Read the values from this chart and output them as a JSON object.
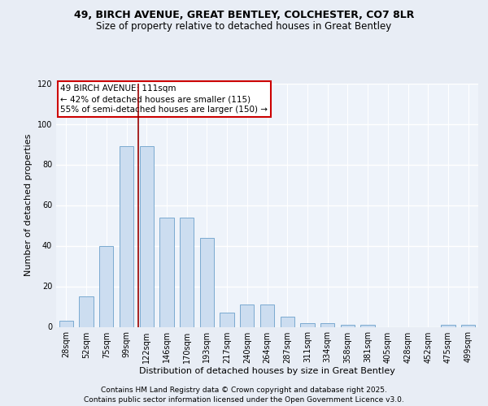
{
  "title1": "49, BIRCH AVENUE, GREAT BENTLEY, COLCHESTER, CO7 8LR",
  "title2": "Size of property relative to detached houses in Great Bentley",
  "xlabel": "Distribution of detached houses by size in Great Bentley",
  "ylabel": "Number of detached properties",
  "categories": [
    "28sqm",
    "52sqm",
    "75sqm",
    "99sqm",
    "122sqm",
    "146sqm",
    "170sqm",
    "193sqm",
    "217sqm",
    "240sqm",
    "264sqm",
    "287sqm",
    "311sqm",
    "334sqm",
    "358sqm",
    "381sqm",
    "405sqm",
    "428sqm",
    "452sqm",
    "475sqm",
    "499sqm"
  ],
  "values": [
    3,
    15,
    40,
    89,
    89,
    54,
    54,
    44,
    7,
    11,
    11,
    5,
    2,
    2,
    1,
    1,
    0,
    0,
    0,
    1,
    1
  ],
  "bar_color": "#ccddf0",
  "bar_edge_color": "#7aaad0",
  "bar_width": 0.7,
  "vline_x": 3.6,
  "vline_color": "#990000",
  "annotation_line1": "49 BIRCH AVENUE: 111sqm",
  "annotation_line2": "← 42% of detached houses are smaller (115)",
  "annotation_line3": "55% of semi-detached houses are larger (150) →",
  "annotation_box_color": "#cc0000",
  "ylim": [
    0,
    120
  ],
  "yticks": [
    0,
    20,
    40,
    60,
    80,
    100,
    120
  ],
  "bg_color": "#e8edf5",
  "plot_bg_color": "#eef3fa",
  "footer_line1": "Contains HM Land Registry data © Crown copyright and database right 2025.",
  "footer_line2": "Contains public sector information licensed under the Open Government Licence v3.0.",
  "title1_fontsize": 9,
  "title2_fontsize": 8.5,
  "annotation_fontsize": 7.5,
  "axis_label_fontsize": 8,
  "tick_fontsize": 7,
  "footer_fontsize": 6.5
}
